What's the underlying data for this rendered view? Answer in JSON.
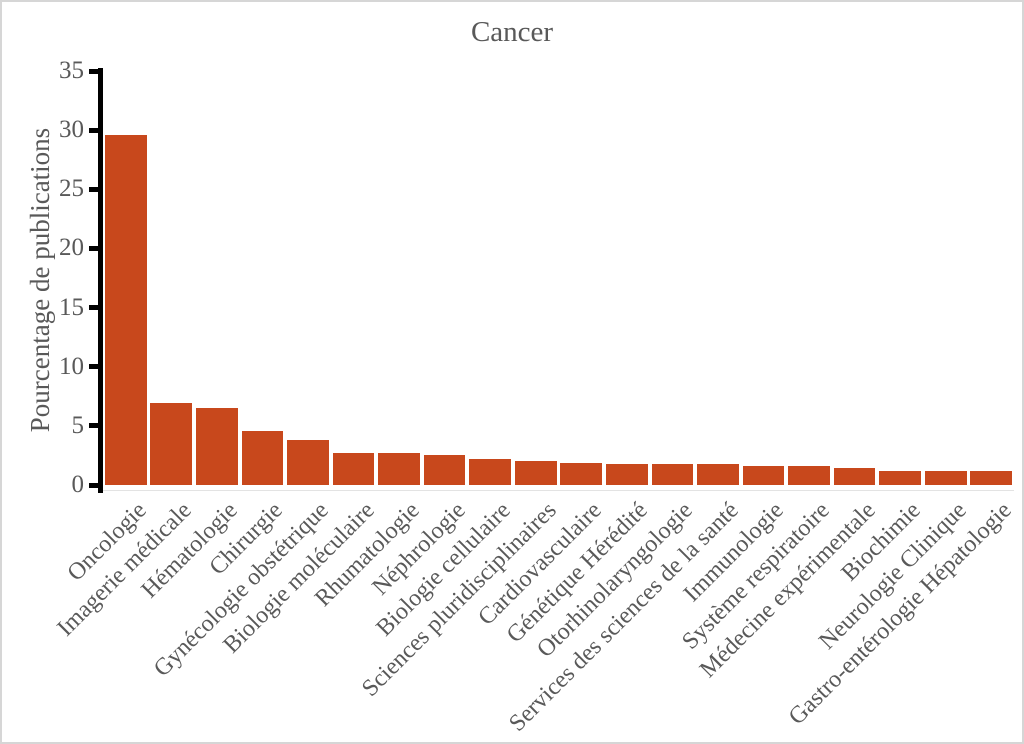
{
  "frame": {
    "background": "#ffffff",
    "border_color": "#d6d6d6"
  },
  "chart_data": {
    "type": "bar",
    "title": "Cancer",
    "xlabel": "",
    "ylabel": "Pourcentage de publications",
    "categories": [
      "Oncologie",
      "Imagerie médicale",
      "Hématologie",
      "Chirurgie",
      "Gynécologie obstétrique",
      "Biologie moléculaire",
      "Rhumatologie",
      "Néphrologie",
      "Biologie cellulaire",
      "Sciences pluridisciplinaires",
      "Cardiovasculaire",
      "Génétique Hérédité",
      "Otorhinolaryngologie",
      "Services des sciences de la santé",
      "Immunologie",
      "Système respiratoire",
      "Médecine expérimentale",
      "Biochimie",
      "Neurologie Clinique",
      "Gastro-entérologie Hépatologie"
    ],
    "values": [
      29.6,
      6.9,
      6.5,
      4.6,
      3.8,
      2.7,
      2.7,
      2.5,
      2.2,
      2.0,
      1.9,
      1.8,
      1.8,
      1.8,
      1.6,
      1.6,
      1.4,
      1.2,
      1.2,
      1.2
    ],
    "ylim": [
      0,
      35
    ],
    "yticks": [
      0,
      5,
      10,
      15,
      20,
      25,
      30,
      35
    ],
    "grid": false,
    "legend": "none",
    "bar_color": "#c8481c",
    "axis_color": "#000000",
    "text_color": "#595959"
  }
}
